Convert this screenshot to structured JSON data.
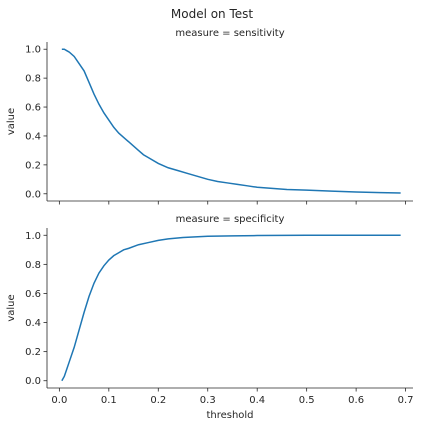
{
  "chart_data": {
    "type": "line",
    "title": "Model on Test",
    "xlabel": "threshold",
    "ylabel": "value",
    "xlim": [
      -0.025,
      0.715
    ],
    "ylim": [
      -0.05,
      1.05
    ],
    "x_ticks": [
      0.0,
      0.1,
      0.2,
      0.3,
      0.4,
      0.5,
      0.6,
      0.7
    ],
    "x_tick_labels": [
      "0.0",
      "0.1",
      "0.2",
      "0.3",
      "0.4",
      "0.5",
      "0.6",
      "0.7"
    ],
    "y_ticks": [
      0.0,
      0.2,
      0.4,
      0.6,
      0.8,
      1.0
    ],
    "y_tick_labels": [
      "0.0",
      "0.2",
      "0.4",
      "0.6",
      "0.8",
      "1.0"
    ],
    "grid": false,
    "color": "#1f77b4",
    "panels": [
      {
        "title": "measure = sensitivity",
        "x": [
          0.005,
          0.01,
          0.015,
          0.02,
          0.03,
          0.04,
          0.05,
          0.06,
          0.07,
          0.08,
          0.09,
          0.1,
          0.11,
          0.12,
          0.13,
          0.14,
          0.15,
          0.16,
          0.17,
          0.18,
          0.2,
          0.22,
          0.24,
          0.26,
          0.28,
          0.3,
          0.32,
          0.34,
          0.36,
          0.38,
          0.4,
          0.43,
          0.46,
          0.5,
          0.55,
          0.6,
          0.65,
          0.69
        ],
        "y": [
          1.0,
          1.0,
          0.99,
          0.98,
          0.95,
          0.9,
          0.85,
          0.77,
          0.69,
          0.62,
          0.56,
          0.51,
          0.46,
          0.42,
          0.39,
          0.36,
          0.33,
          0.3,
          0.27,
          0.25,
          0.21,
          0.18,
          0.16,
          0.14,
          0.12,
          0.1,
          0.085,
          0.075,
          0.065,
          0.055,
          0.045,
          0.037,
          0.03,
          0.025,
          0.018,
          0.012,
          0.008,
          0.005
        ]
      },
      {
        "title": "measure = specificity",
        "x": [
          0.005,
          0.01,
          0.015,
          0.02,
          0.03,
          0.04,
          0.05,
          0.06,
          0.07,
          0.08,
          0.09,
          0.1,
          0.11,
          0.12,
          0.13,
          0.14,
          0.16,
          0.18,
          0.2,
          0.22,
          0.25,
          0.28,
          0.3,
          0.35,
          0.4,
          0.45,
          0.5,
          0.6,
          0.69
        ],
        "y": [
          0.0,
          0.03,
          0.08,
          0.13,
          0.23,
          0.35,
          0.47,
          0.58,
          0.67,
          0.74,
          0.79,
          0.83,
          0.86,
          0.88,
          0.9,
          0.91,
          0.935,
          0.95,
          0.965,
          0.975,
          0.985,
          0.99,
          0.993,
          0.996,
          0.998,
          0.999,
          1.0,
          1.0,
          1.0
        ]
      }
    ]
  }
}
